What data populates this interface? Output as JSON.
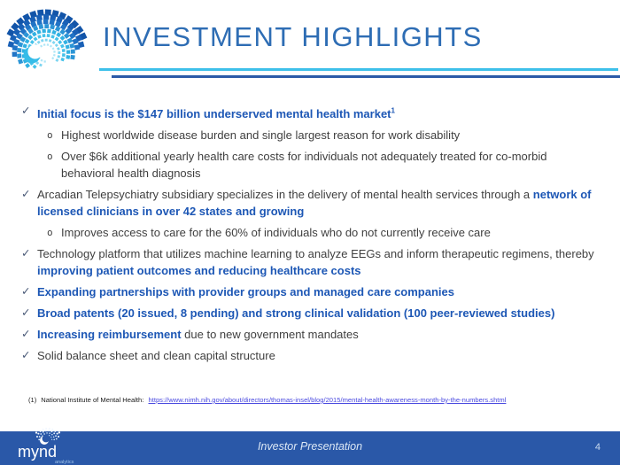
{
  "header": {
    "title": "INVESTMENT HIGHLIGHTS"
  },
  "bullets": [
    {
      "level": 1,
      "marker": "check",
      "segments": [
        {
          "text": "Initial focus is the $147 billion underserved mental health market",
          "style": "em"
        },
        {
          "text": "1",
          "style": "em-sup"
        }
      ]
    },
    {
      "level": 2,
      "marker": "circle",
      "segments": [
        {
          "text": "Highest worldwide disease burden and single largest reason for work disability",
          "style": "plain"
        }
      ]
    },
    {
      "level": 2,
      "marker": "circle",
      "segments": [
        {
          "text": "Over $6k additional yearly health care costs for individuals not adequately treated for co-morbid behavioral health diagnosis",
          "style": "plain"
        }
      ]
    },
    {
      "level": 1,
      "marker": "check",
      "segments": [
        {
          "text": "Arcadian Telepsychiatry subsidiary specializes in the delivery of mental health services through a ",
          "style": "plain"
        },
        {
          "text": "network of licensed clinicians in over 42 states and growing",
          "style": "em"
        }
      ]
    },
    {
      "level": 2,
      "marker": "circle",
      "segments": [
        {
          "text": "Improves access to care for the 60% of individuals who do not currently receive care",
          "style": "plain"
        }
      ]
    },
    {
      "level": 1,
      "marker": "check",
      "segments": [
        {
          "text": "Technology platform that utilizes machine learning to analyze EEGs and inform therapeutic regimens, thereby ",
          "style": "plain"
        },
        {
          "text": "improving patient outcomes and reducing healthcare costs",
          "style": "em"
        }
      ]
    },
    {
      "level": 1,
      "marker": "check",
      "segments": [
        {
          "text": "Expanding partnerships with provider groups and managed care companies",
          "style": "em"
        }
      ]
    },
    {
      "level": 1,
      "marker": "check",
      "segments": [
        {
          "text": "Broad patents (20 issued, 8 pending) and strong clinical validation (100 peer-reviewed studies)",
          "style": "em"
        }
      ]
    },
    {
      "level": 1,
      "marker": "check",
      "segments": [
        {
          "text": "Increasing reimbursement",
          "style": "em"
        },
        {
          "text": " due to new government mandates",
          "style": "plain"
        }
      ]
    },
    {
      "level": 1,
      "marker": "check",
      "segments": [
        {
          "text": "Solid balance sheet and clean capital structure",
          "style": "plain"
        }
      ]
    }
  ],
  "footnote": {
    "number": "(1)",
    "source_label": "National Institute of Mental Health:",
    "link_text": "https://www.nimh.nih.gov/about/directors/thomas-insel/blog/2015/mental-health-awareness-month-by-the-numbers.shtml"
  },
  "footer": {
    "logo_text": "mynd",
    "logo_subtext": "analytics",
    "center_text": "Investor Presentation",
    "page_number": "4"
  },
  "colors": {
    "title_blue": "#2e6db4",
    "divider_cyan": "#3dc0ea",
    "divider_blue": "#2b5aa8",
    "emphasis_blue": "#1d57b5",
    "body_gray": "#3f3f3f",
    "footer_bar_blue": "#2a58a8",
    "link_blue": "#4a4ae0",
    "logo_cyan": "#35bce8",
    "logo_dark_blue": "#1254a8"
  }
}
